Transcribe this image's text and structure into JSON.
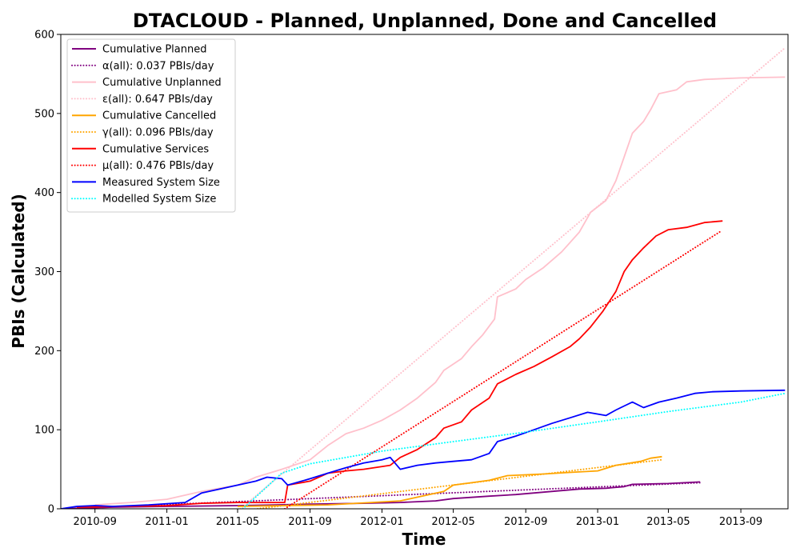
{
  "chart_data": {
    "type": "line",
    "title": "DTACLOUD - Planned, Unplanned, Done  and Cancelled",
    "xlabel": "Time",
    "ylabel": "PBIs (Calculated)",
    "xlim": [
      "2010-07-05",
      "2013-11-20"
    ],
    "ylim": [
      0,
      600
    ],
    "x_ticks": [
      "2010-09",
      "2011-01",
      "2011-05",
      "2011-09",
      "2012-01",
      "2012-05",
      "2012-09",
      "2013-01",
      "2013-05",
      "2013-09"
    ],
    "y_ticks": [
      0,
      100,
      200,
      300,
      400,
      500,
      600
    ],
    "grid": false,
    "legend_position": "upper-left",
    "series": [
      {
        "name": "Cumulative Planned",
        "color": "#800080",
        "style": "solid",
        "points": [
          [
            "2010-07-05",
            0
          ],
          [
            "2010-10-01",
            2
          ],
          [
            "2011-01-01",
            3
          ],
          [
            "2011-05-01",
            4
          ],
          [
            "2011-07-01",
            5
          ],
          [
            "2011-09-01",
            6
          ],
          [
            "2011-12-01",
            7
          ],
          [
            "2012-02-01",
            8
          ],
          [
            "2012-04-01",
            10
          ],
          [
            "2012-05-01",
            13
          ],
          [
            "2012-07-01",
            16
          ],
          [
            "2012-08-15",
            18
          ],
          [
            "2012-10-01",
            21
          ],
          [
            "2012-12-01",
            25
          ],
          [
            "2013-01-15",
            26
          ],
          [
            "2013-02-15",
            28
          ],
          [
            "2013-03-01",
            31
          ],
          [
            "2013-05-01",
            32
          ],
          [
            "2013-06-24",
            34
          ]
        ]
      },
      {
        "name": "α(all): 0.037 PBIs/day",
        "color": "#800080",
        "style": "dotted",
        "points": [
          [
            "2010-07-05",
            0
          ],
          [
            "2013-06-24",
            33
          ]
        ]
      },
      {
        "name": "Cumulative Unplanned",
        "color": "#ffc0cb",
        "style": "solid",
        "points": [
          [
            "2010-09-01",
            5
          ],
          [
            "2010-11-01",
            8
          ],
          [
            "2011-01-01",
            12
          ],
          [
            "2011-03-01",
            22
          ],
          [
            "2011-05-01",
            30
          ],
          [
            "2011-06-01",
            40
          ],
          [
            "2011-07-15",
            50
          ],
          [
            "2011-09-01",
            62
          ],
          [
            "2011-10-01",
            80
          ],
          [
            "2011-11-01",
            95
          ],
          [
            "2011-12-01",
            102
          ],
          [
            "2012-01-01",
            112
          ],
          [
            "2012-02-01",
            125
          ],
          [
            "2012-03-01",
            140
          ],
          [
            "2012-04-01",
            160
          ],
          [
            "2012-04-15",
            175
          ],
          [
            "2012-05-15",
            190
          ],
          [
            "2012-06-01",
            205
          ],
          [
            "2012-06-20",
            220
          ],
          [
            "2012-07-10",
            240
          ],
          [
            "2012-07-15",
            268
          ],
          [
            "2012-08-15",
            278
          ],
          [
            "2012-09-01",
            290
          ],
          [
            "2012-10-01",
            305
          ],
          [
            "2012-11-01",
            325
          ],
          [
            "2012-12-01",
            350
          ],
          [
            "2012-12-20",
            375
          ],
          [
            "2013-01-15",
            390
          ],
          [
            "2013-02-01",
            415
          ],
          [
            "2013-02-15",
            445
          ],
          [
            "2013-03-01",
            475
          ],
          [
            "2013-03-20",
            490
          ],
          [
            "2013-04-01",
            505
          ],
          [
            "2013-04-15",
            525
          ],
          [
            "2013-05-15",
            530
          ],
          [
            "2013-06-01",
            540
          ],
          [
            "2013-07-01",
            543
          ],
          [
            "2013-09-01",
            545
          ],
          [
            "2013-11-15",
            546
          ]
        ]
      },
      {
        "name": "ε(all): 0.647 PBIs/day",
        "color": "#ffc0cb",
        "style": "dotted",
        "points": [
          [
            "2011-05-06",
            0
          ],
          [
            "2013-11-15",
            583
          ]
        ]
      },
      {
        "name": "Cumulative Cancelled",
        "color": "#ffa500",
        "style": "solid",
        "points": [
          [
            "2011-05-01",
            3
          ],
          [
            "2011-10-01",
            5
          ],
          [
            "2012-02-01",
            10
          ],
          [
            "2012-04-15",
            22
          ],
          [
            "2012-05-01",
            30
          ],
          [
            "2012-06-01",
            33
          ],
          [
            "2012-07-01",
            36
          ],
          [
            "2012-08-01",
            42
          ],
          [
            "2012-10-01",
            44
          ],
          [
            "2012-11-15",
            46
          ],
          [
            "2013-01-01",
            48
          ],
          [
            "2013-02-01",
            55
          ],
          [
            "2013-03-15",
            60
          ],
          [
            "2013-04-01",
            64
          ],
          [
            "2013-04-20",
            66
          ]
        ]
      },
      {
        "name": "γ(all): 0.096 PBIs/day",
        "color": "#ffa500",
        "style": "dotted",
        "points": [
          [
            "2011-05-01",
            -3
          ],
          [
            "2013-04-20",
            62
          ]
        ]
      },
      {
        "name": "Cumulative Services",
        "color": "#ff0000",
        "style": "solid",
        "points": [
          [
            "2010-08-01",
            2
          ],
          [
            "2011-01-01",
            4
          ],
          [
            "2011-03-01",
            7
          ],
          [
            "2011-05-01",
            8
          ],
          [
            "2011-07-20",
            8
          ],
          [
            "2011-07-25",
            30
          ],
          [
            "2011-09-01",
            35
          ],
          [
            "2011-10-01",
            45
          ],
          [
            "2011-11-01",
            48
          ],
          [
            "2011-12-01",
            50
          ],
          [
            "2012-01-15",
            55
          ],
          [
            "2012-02-01",
            65
          ],
          [
            "2012-03-01",
            75
          ],
          [
            "2012-04-01",
            90
          ],
          [
            "2012-04-15",
            102
          ],
          [
            "2012-05-15",
            110
          ],
          [
            "2012-06-01",
            125
          ],
          [
            "2012-07-01",
            140
          ],
          [
            "2012-07-15",
            158
          ],
          [
            "2012-08-15",
            170
          ],
          [
            "2012-09-15",
            180
          ],
          [
            "2012-10-15",
            192
          ],
          [
            "2012-11-15",
            205
          ],
          [
            "2012-12-01",
            215
          ],
          [
            "2012-12-20",
            230
          ],
          [
            "2013-01-10",
            250
          ],
          [
            "2013-02-01",
            275
          ],
          [
            "2013-02-15",
            300
          ],
          [
            "2013-03-01",
            315
          ],
          [
            "2013-03-20",
            330
          ],
          [
            "2013-04-10",
            345
          ],
          [
            "2013-05-01",
            353
          ],
          [
            "2013-06-01",
            356
          ],
          [
            "2013-07-01",
            362
          ],
          [
            "2013-08-01",
            364
          ]
        ]
      },
      {
        "name": "μ(all): 0.476 PBIs/day",
        "color": "#ff0000",
        "style": "dotted",
        "points": [
          [
            "2011-07-20",
            0
          ],
          [
            "2013-07-31",
            352
          ]
        ]
      },
      {
        "name": "Measured System Size",
        "color": "#0000ff",
        "style": "solid",
        "points": [
          [
            "2010-07-05",
            0
          ],
          [
            "2010-08-01",
            3
          ],
          [
            "2010-09-01",
            4
          ],
          [
            "2010-10-01",
            3
          ],
          [
            "2010-12-01",
            5
          ],
          [
            "2011-02-01",
            8
          ],
          [
            "2011-03-01",
            20
          ],
          [
            "2011-04-01",
            25
          ],
          [
            "2011-05-01",
            30
          ],
          [
            "2011-06-01",
            35
          ],
          [
            "2011-06-20",
            40
          ],
          [
            "2011-07-15",
            38
          ],
          [
            "2011-07-25",
            30
          ],
          [
            "2011-09-01",
            38
          ],
          [
            "2011-10-01",
            45
          ],
          [
            "2011-11-01",
            52
          ],
          [
            "2011-12-01",
            58
          ],
          [
            "2012-01-01",
            62
          ],
          [
            "2012-01-15",
            65
          ],
          [
            "2012-02-01",
            50
          ],
          [
            "2012-03-01",
            55
          ],
          [
            "2012-04-01",
            58
          ],
          [
            "2012-05-01",
            60
          ],
          [
            "2012-06-01",
            62
          ],
          [
            "2012-07-01",
            70
          ],
          [
            "2012-07-15",
            85
          ],
          [
            "2012-08-15",
            92
          ],
          [
            "2012-09-15",
            100
          ],
          [
            "2012-10-15",
            108
          ],
          [
            "2012-11-15",
            115
          ],
          [
            "2012-12-15",
            122
          ],
          [
            "2013-01-15",
            118
          ],
          [
            "2013-02-01",
            125
          ],
          [
            "2013-02-15",
            130
          ],
          [
            "2013-03-01",
            135
          ],
          [
            "2013-03-20",
            128
          ],
          [
            "2013-04-15",
            135
          ],
          [
            "2013-05-15",
            140
          ],
          [
            "2013-06-15",
            146
          ],
          [
            "2013-07-15",
            148
          ],
          [
            "2013-09-01",
            149
          ],
          [
            "2013-11-15",
            150
          ]
        ]
      },
      {
        "name": "Modelled System Size",
        "color": "#00ffff",
        "style": "dotted",
        "points": [
          [
            "2011-05-10",
            0
          ],
          [
            "2011-07-15",
            45
          ],
          [
            "2011-09-01",
            57
          ],
          [
            "2012-01-01",
            73
          ],
          [
            "2012-05-01",
            85
          ],
          [
            "2012-09-01",
            97
          ],
          [
            "2013-01-01",
            110
          ],
          [
            "2013-05-01",
            123
          ],
          [
            "2013-09-01",
            135
          ],
          [
            "2013-11-15",
            146
          ]
        ]
      }
    ]
  }
}
